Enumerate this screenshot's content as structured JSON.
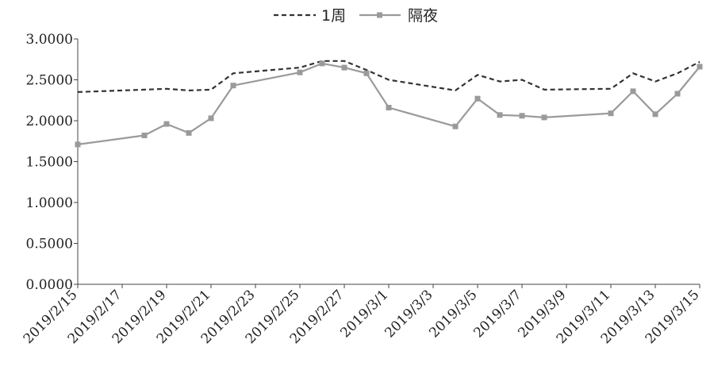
{
  "chart_data": {
    "type": "line",
    "title": "",
    "xlabel": "",
    "ylabel": "",
    "ylim": [
      0,
      3
    ],
    "yticks": [
      "0.0000",
      "0.5000",
      "1.0000",
      "1.5000",
      "2.0000",
      "2.5000",
      "3.0000"
    ],
    "xticks": [
      "2019/2/15",
      "2019/2/17",
      "2019/2/19",
      "2019/2/21",
      "2019/2/23",
      "2019/2/25",
      "2019/2/27",
      "2019/3/1",
      "2019/3/3",
      "2019/3/5",
      "2019/3/7",
      "2019/3/9",
      "2019/3/11",
      "2019/3/13",
      "2019/3/15"
    ],
    "x": [
      "2019/2/15",
      "2019/2/18",
      "2019/2/19",
      "2019/2/20",
      "2019/2/21",
      "2019/2/22",
      "2019/2/25",
      "2019/2/26",
      "2019/2/27",
      "2019/2/28",
      "2019/3/1",
      "2019/3/4",
      "2019/3/5",
      "2019/3/6",
      "2019/3/7",
      "2019/3/8",
      "2019/3/11",
      "2019/3/12",
      "2019/3/13",
      "2019/3/14",
      "2019/3/15"
    ],
    "series": [
      {
        "name": "1周",
        "style": "dashed",
        "color": "#333333",
        "values": [
          2.35,
          2.38,
          2.39,
          2.37,
          2.38,
          2.58,
          2.65,
          2.73,
          2.73,
          2.62,
          2.5,
          2.37,
          2.56,
          2.48,
          2.5,
          2.38,
          2.39,
          2.58,
          2.48,
          2.58,
          2.72
        ]
      },
      {
        "name": "隔夜",
        "style": "solid",
        "color": "#9a9a9a",
        "values": [
          1.71,
          1.82,
          1.96,
          1.85,
          2.03,
          2.43,
          2.59,
          2.7,
          2.65,
          2.58,
          2.16,
          1.93,
          2.27,
          2.07,
          2.06,
          2.04,
          2.09,
          2.36,
          2.08,
          2.33,
          2.66
        ]
      }
    ],
    "legend_position": "top-center",
    "grid": false
  }
}
